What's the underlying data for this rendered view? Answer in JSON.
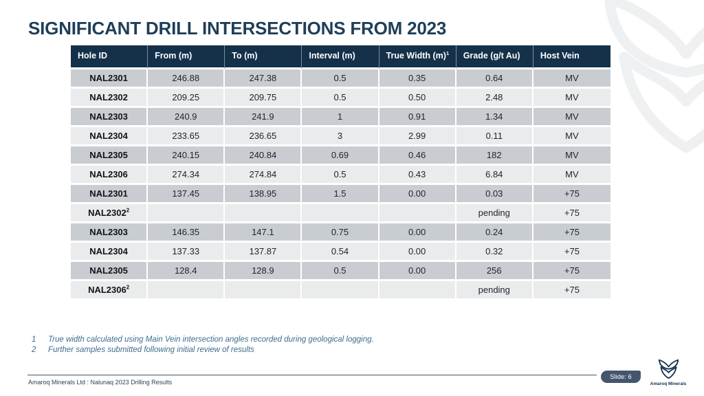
{
  "slide": {
    "title": "SIGNIFICANT DRILL INTERSECTIONS FROM 2023",
    "footnotes": [
      {
        "num": "1",
        "text": "True width calculated using Main Vein intersection angles recorded during geological logging."
      },
      {
        "num": "2",
        "text": "Further samples submitted following initial review of results"
      }
    ],
    "footer": {
      "left_text": "Amaroq Minerals Ltd : Nalunaq 2023 Drilling Results",
      "slide_badge": "Slide: 6",
      "logo_caption": "Amaroq Minerals"
    }
  },
  "table": {
    "columns": [
      {
        "label": "Hole ID",
        "sup": ""
      },
      {
        "label": "From (m)",
        "sup": ""
      },
      {
        "label": "To (m)",
        "sup": ""
      },
      {
        "label": "Interval (m)",
        "sup": ""
      },
      {
        "label": "True Width (m)",
        "sup": "1"
      },
      {
        "label": "Grade (g/t Au)",
        "sup": ""
      },
      {
        "label": "Host Vein",
        "sup": ""
      }
    ],
    "rows": [
      {
        "cells": [
          "NAL2301",
          "246.88",
          "247.38",
          "0.5",
          "0.35",
          "0.64",
          "MV"
        ],
        "id_sup": ""
      },
      {
        "cells": [
          "NAL2302",
          "209.25",
          "209.75",
          "0.5",
          "0.50",
          "2.48",
          "MV"
        ],
        "id_sup": ""
      },
      {
        "cells": [
          "NAL2303",
          "240.9",
          "241.9",
          "1",
          "0.91",
          "1.34",
          "MV"
        ],
        "id_sup": ""
      },
      {
        "cells": [
          "NAL2304",
          "233.65",
          "236.65",
          "3",
          "2.99",
          "0.11",
          "MV"
        ],
        "id_sup": ""
      },
      {
        "cells": [
          "NAL2305",
          "240.15",
          "240.84",
          "0.69",
          "0.46",
          "182",
          "MV"
        ],
        "id_sup": ""
      },
      {
        "cells": [
          "NAL2306",
          "274.34",
          "274.84",
          "0.5",
          "0.43",
          "6.84",
          "MV"
        ],
        "id_sup": ""
      },
      {
        "cells": [
          "NAL2301",
          "137.45",
          "138.95",
          "1.5",
          "0.00",
          "0.03",
          "+75"
        ],
        "id_sup": ""
      },
      {
        "cells": [
          "NAL2302",
          "",
          "",
          "",
          "",
          "pending",
          "+75"
        ],
        "id_sup": "2"
      },
      {
        "cells": [
          "NAL2303",
          "146.35",
          "147.1",
          "0.75",
          "0.00",
          "0.24",
          "+75"
        ],
        "id_sup": ""
      },
      {
        "cells": [
          "NAL2304",
          "137.33",
          "137.87",
          "0.54",
          "0.00",
          "0.32",
          "+75"
        ],
        "id_sup": ""
      },
      {
        "cells": [
          "NAL2305",
          "128.4",
          "128.9",
          "0.5",
          "0.00",
          "256",
          "+75"
        ],
        "id_sup": ""
      },
      {
        "cells": [
          "NAL2306",
          "",
          "",
          "",
          "",
          "pending",
          "+75"
        ],
        "id_sup": "2"
      }
    ]
  },
  "colors": {
    "header_bg": "#15314a",
    "title_text": "#1f3e58",
    "row_gray": "#c9cdd1",
    "row_light": "#e9ebed",
    "footnote_blue": "#3d6c8c",
    "badge_bg": "#44566e",
    "logo_navy": "#14304b",
    "watermark_gray": "#eef0f2"
  }
}
